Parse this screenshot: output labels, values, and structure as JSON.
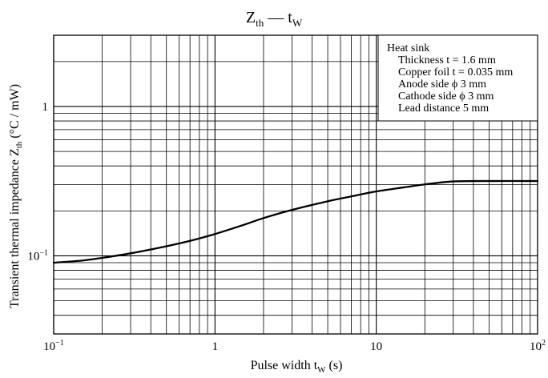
{
  "chart_data": {
    "type": "line",
    "title": "Z",
    "title_sub": "th",
    "title_sep": " — ",
    "title_right": "t",
    "title_right_sub": "W",
    "xlabel": "Pulse width  t",
    "xlabel_sub": "W",
    "xlabel_unit": "  (s)",
    "ylabel": "Transient thermal impedance  Z",
    "ylabel_sub": "th",
    "ylabel_unit": "  (°C / mW)",
    "x_scale": "log",
    "y_scale": "log",
    "xlim": [
      0.1,
      100
    ],
    "ylim": [
      0.03,
      3
    ],
    "grid": true,
    "x_ticks": [
      {
        "value": 0.1,
        "base": "10",
        "exp": "−1"
      },
      {
        "value": 1,
        "base": "1",
        "exp": ""
      },
      {
        "value": 10,
        "base": "10",
        "exp": ""
      },
      {
        "value": 100,
        "base": "10",
        "exp": "2"
      }
    ],
    "y_ticks": [
      {
        "value": 0.1,
        "base": "10",
        "exp": "−1"
      },
      {
        "value": 1,
        "base": "1",
        "exp": ""
      }
    ],
    "legend_placement": "top-right",
    "legend_lines": [
      "Heat sink",
      "Thickness t = 1.6 mm",
      "Copper foil t = 0.035 mm",
      "Anode side ϕ 3 mm",
      "Cathode side ϕ 3 mm",
      "Lead distance 5 mm"
    ],
    "series": [
      {
        "x": [
          0.1,
          0.15,
          0.2,
          0.3,
          0.5,
          0.7,
          1,
          1.5,
          2,
          3,
          5,
          7,
          10,
          15,
          20,
          30,
          50,
          100
        ],
        "y": [
          0.09,
          0.093,
          0.097,
          0.104,
          0.116,
          0.126,
          0.14,
          0.161,
          0.179,
          0.203,
          0.232,
          0.25,
          0.27,
          0.288,
          0.301,
          0.315,
          0.317,
          0.317
        ]
      }
    ]
  }
}
